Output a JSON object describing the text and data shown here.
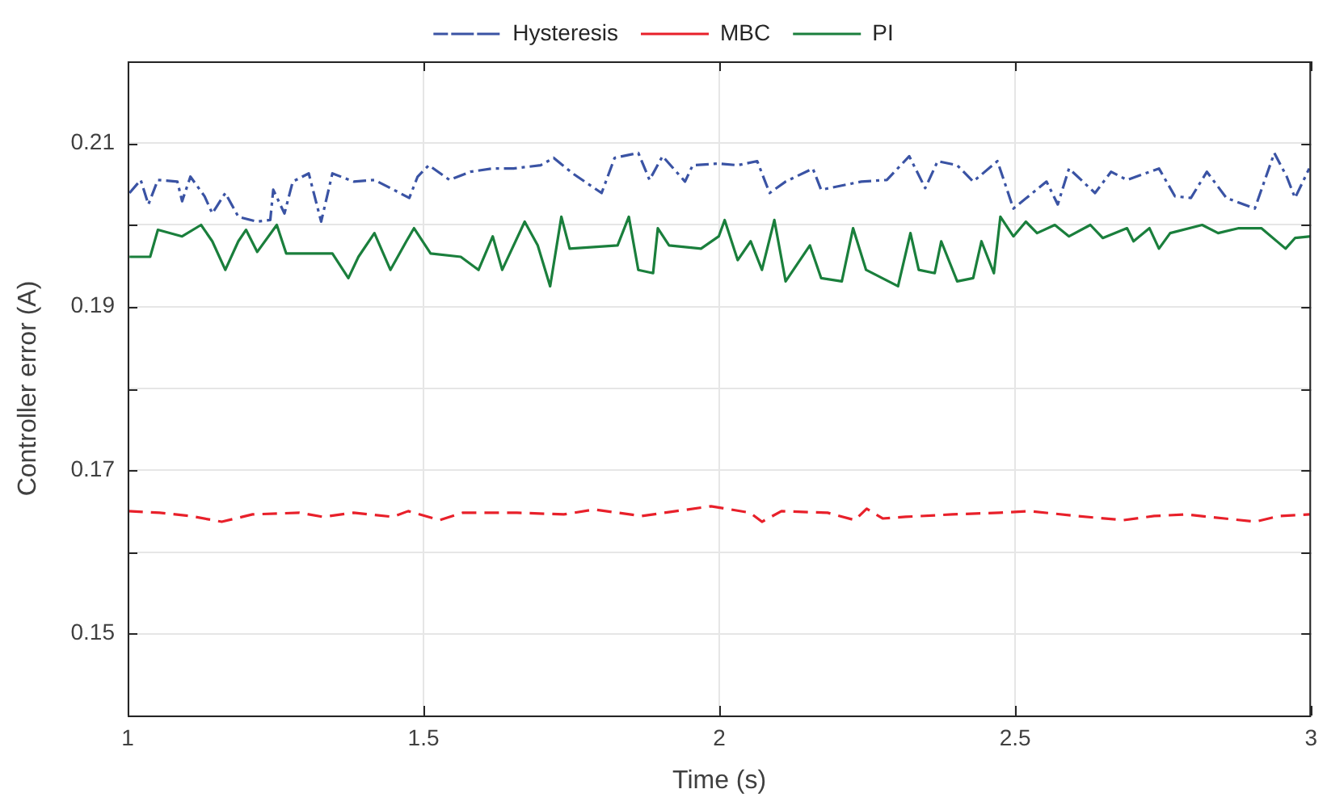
{
  "chart_data": {
    "type": "line",
    "xlabel": "Time (s)",
    "ylabel": "Controller error (A)",
    "xlim": [
      1,
      3
    ],
    "xticks": [
      1,
      1.5,
      2,
      2.5,
      3
    ],
    "ylim": [
      0.14,
      0.22
    ],
    "yticks": [
      {
        "value": 0.14,
        "label": null
      },
      0.15,
      {
        "value": 0.16,
        "label": null
      },
      0.17,
      {
        "value": 0.18,
        "label": null
      },
      0.19,
      {
        "value": 0.2,
        "label": null
      },
      0.21,
      {
        "value": 0.22,
        "label": null
      }
    ],
    "grid": true,
    "legend": "top",
    "marker": "none",
    "series": [
      {
        "name": "Hysteresis",
        "color": "#3a53a4",
        "line_style": "dashdot",
        "x": [
          1.003,
          1.022,
          1.035,
          1.051,
          1.084,
          1.092,
          1.106,
          1.13,
          1.143,
          1.165,
          1.187,
          1.219,
          1.241,
          1.246,
          1.265,
          1.279,
          1.306,
          1.327,
          1.346,
          1.382,
          1.417,
          1.444,
          1.476,
          1.49,
          1.509,
          1.544,
          1.579,
          1.617,
          1.652,
          1.698,
          1.72,
          1.752,
          1.801,
          1.823,
          1.863,
          1.882,
          1.904,
          1.942,
          1.955,
          1.999,
          2.031,
          2.064,
          2.085,
          2.112,
          2.158,
          2.172,
          2.24,
          2.283,
          2.321,
          2.348,
          2.369,
          2.402,
          2.429,
          2.47,
          2.497,
          2.553,
          2.572,
          2.591,
          2.635,
          2.662,
          2.689,
          2.743,
          2.77,
          2.797,
          2.824,
          2.857,
          2.905,
          2.938,
          2.959,
          2.973,
          2.997
        ],
        "values": [
          0.2039,
          0.2055,
          0.2025,
          0.2055,
          0.2053,
          0.2029,
          0.2059,
          0.2035,
          0.2014,
          0.2039,
          0.201,
          0.2004,
          0.2006,
          0.2043,
          0.2014,
          0.2053,
          0.2063,
          0.2004,
          0.2063,
          0.2053,
          0.2055,
          0.2045,
          0.2033,
          0.2059,
          0.2073,
          0.2055,
          0.2065,
          0.2069,
          0.2069,
          0.2073,
          0.2082,
          0.2063,
          0.2039,
          0.2082,
          0.2088,
          0.2055,
          0.2084,
          0.2053,
          0.2073,
          0.2075,
          0.2073,
          0.2078,
          0.2039,
          0.2053,
          0.2069,
          0.2043,
          0.2053,
          0.2055,
          0.2084,
          0.2045,
          0.2078,
          0.2073,
          0.2053,
          0.2078,
          0.202,
          0.2053,
          0.2025,
          0.2069,
          0.2039,
          0.2065,
          0.2055,
          0.2069,
          0.2035,
          0.2033,
          0.2065,
          0.2033,
          0.202,
          0.2088,
          0.2059,
          0.2033,
          0.2069
        ]
      },
      {
        "name": "MBC",
        "color": "#e8202a",
        "line_style": "dashed",
        "x": [
          1.001,
          1.054,
          1.106,
          1.159,
          1.211,
          1.29,
          1.33,
          1.382,
          1.448,
          1.474,
          1.527,
          1.566,
          1.658,
          1.737,
          1.789,
          1.868,
          1.947,
          1.986,
          2.052,
          2.072,
          2.105,
          2.183,
          2.229,
          2.249,
          2.276,
          2.315,
          2.394,
          2.473,
          2.525,
          2.604,
          2.683,
          2.735,
          2.788,
          2.854,
          2.906,
          2.946,
          2.998
        ],
        "values": [
          0.165,
          0.1648,
          0.1644,
          0.1637,
          0.1646,
          0.1648,
          0.1643,
          0.1648,
          0.1643,
          0.165,
          0.1639,
          0.1648,
          0.1648,
          0.1646,
          0.1652,
          0.1644,
          0.1652,
          0.1656,
          0.1648,
          0.1637,
          0.165,
          0.1648,
          0.1639,
          0.1653,
          0.1641,
          0.1643,
          0.1646,
          0.1648,
          0.165,
          0.1644,
          0.1639,
          0.1644,
          0.1646,
          0.1641,
          0.1637,
          0.1644,
          0.1646
        ]
      },
      {
        "name": "PI",
        "color": "#1a7f3c",
        "line_style": "solid",
        "x": [
          1.003,
          1.038,
          1.051,
          1.092,
          1.124,
          1.143,
          1.165,
          1.187,
          1.2,
          1.219,
          1.252,
          1.268,
          1.309,
          1.346,
          1.373,
          1.39,
          1.417,
          1.444,
          1.471,
          1.484,
          1.512,
          1.563,
          1.593,
          1.617,
          1.633,
          1.671,
          1.693,
          1.714,
          1.733,
          1.747,
          1.828,
          1.847,
          1.863,
          1.888,
          1.896,
          1.915,
          1.969,
          1.999,
          2.009,
          2.031,
          2.053,
          2.072,
          2.093,
          2.112,
          2.153,
          2.172,
          2.207,
          2.226,
          2.248,
          2.302,
          2.323,
          2.337,
          2.364,
          2.375,
          2.402,
          2.429,
          2.443,
          2.464,
          2.475,
          2.497,
          2.518,
          2.537,
          2.567,
          2.591,
          2.627,
          2.648,
          2.689,
          2.7,
          2.727,
          2.743,
          2.762,
          2.816,
          2.843,
          2.878,
          2.916,
          2.957,
          2.973,
          3.0
        ],
        "values": [
          0.1961,
          0.1961,
          0.1994,
          0.1986,
          0.2,
          0.198,
          0.1945,
          0.198,
          0.1994,
          0.1967,
          0.2,
          0.1965,
          0.1965,
          0.1965,
          0.1935,
          0.1961,
          0.199,
          0.1945,
          0.198,
          0.1996,
          0.1965,
          0.1961,
          0.1945,
          0.1986,
          0.1945,
          0.2004,
          0.1975,
          0.1925,
          0.201,
          0.1971,
          0.1975,
          0.201,
          0.1945,
          0.1941,
          0.1996,
          0.1975,
          0.1971,
          0.1986,
          0.2006,
          0.1957,
          0.198,
          0.1945,
          0.2006,
          0.1931,
          0.1975,
          0.1935,
          0.1931,
          0.1996,
          0.1945,
          0.1925,
          0.199,
          0.1945,
          0.1941,
          0.198,
          0.1931,
          0.1935,
          0.198,
          0.1941,
          0.201,
          0.1986,
          0.2004,
          0.199,
          0.2,
          0.1986,
          0.2,
          0.1984,
          0.1996,
          0.198,
          0.1996,
          0.1971,
          0.199,
          0.2,
          0.199,
          0.1996,
          0.1996,
          0.1971,
          0.1984,
          0.1986
        ]
      }
    ]
  }
}
